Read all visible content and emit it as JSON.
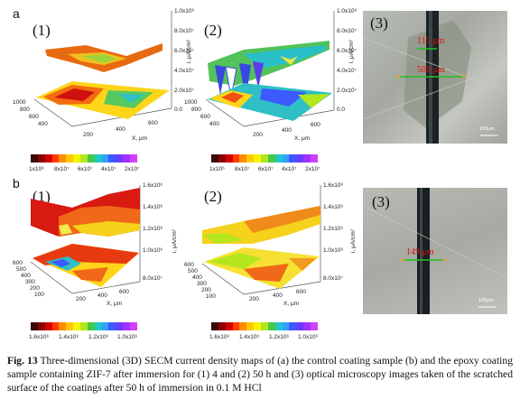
{
  "figure": {
    "row_labels": {
      "a": "a",
      "b": "b"
    },
    "panels": {
      "a1": {
        "num": "(1)",
        "zticks": [
          "1.0x10⁶",
          "8.0x10⁷",
          "6.0x10⁷",
          "4.0x10⁷",
          "2.0x10⁷",
          "0.0"
        ],
        "zlabel": "i, μA/cm²",
        "yticks": [
          "1000",
          "800",
          "600",
          "400"
        ],
        "xticks": [
          "200",
          "400",
          "600"
        ],
        "xlabel": "X, μm"
      },
      "a2": {
        "num": "(2)",
        "zticks": [
          "1.0x10⁶",
          "8.0x10⁷",
          "6.0x10⁷",
          "4.0x10⁷",
          "2.0x10⁷",
          "0.0"
        ],
        "zlabel": "i, μA/cm²",
        "yticks": [
          "1000",
          "800",
          "600",
          "400"
        ],
        "xticks": [
          "200",
          "400",
          "600"
        ],
        "xlabel": "X, μm"
      },
      "a3": {
        "num": "(3)",
        "meas1": "115 μm",
        "meas2": "508 μm",
        "scale": "100μm"
      },
      "b1": {
        "num": "(1)",
        "zticks": [
          "1.6x10⁶",
          "1.4x10⁶",
          "1.2x10⁶",
          "1.0x10⁶",
          "8.0x10⁷"
        ],
        "zlabel": "i, μA/cm²",
        "yticks": [
          "600",
          "500",
          "400",
          "300",
          "200",
          "100"
        ],
        "xticks": [
          "200",
          "400",
          "600"
        ],
        "xlabel": "X, μm"
      },
      "b2": {
        "num": "(2)",
        "zticks": [
          "1.6x10⁶",
          "1.4x10⁶",
          "1.2x10⁶",
          "1.0x10⁶",
          "8.0x10⁷"
        ],
        "zlabel": "i, μA/cm²",
        "yticks": [
          "600",
          "500",
          "400",
          "300",
          "200",
          "100"
        ],
        "xticks": [
          "200",
          "400",
          "600"
        ],
        "xlabel": "X, μm"
      },
      "b3": {
        "num": "(3)",
        "meas1": "149 μm",
        "scale": "100μm"
      }
    },
    "colorbars": {
      "a_ticks": [
        "1x10⁶",
        "8x10⁷",
        "6x10⁷",
        "4x10⁷",
        "2x10⁷"
      ],
      "b_ticks": [
        "1.6x10⁶",
        "1.4x10⁶",
        "1.2x10⁶",
        "1.0x10⁶"
      ],
      "colors": [
        "#3a0a0a",
        "#8b0000",
        "#d40000",
        "#ff3b00",
        "#ff8c00",
        "#ffc800",
        "#f4f400",
        "#b4e61e",
        "#46c846",
        "#1ec8c8",
        "#32a0ff",
        "#3c5aff",
        "#6a3cff",
        "#a032ff",
        "#d040ff"
      ]
    },
    "caption": {
      "prefix": "Fig. 13",
      "text": "  Three-dimensional (3D) SECM current density maps of (a) the control coating sample (b) and the epoxy coating sample containing ZIF-7 after immersion for (1) 4 and (2) 50 h and (3) optical microscopy images taken of the scratched surface of the coatings after 50 h of immersion in 0.1 M HCl"
    }
  }
}
